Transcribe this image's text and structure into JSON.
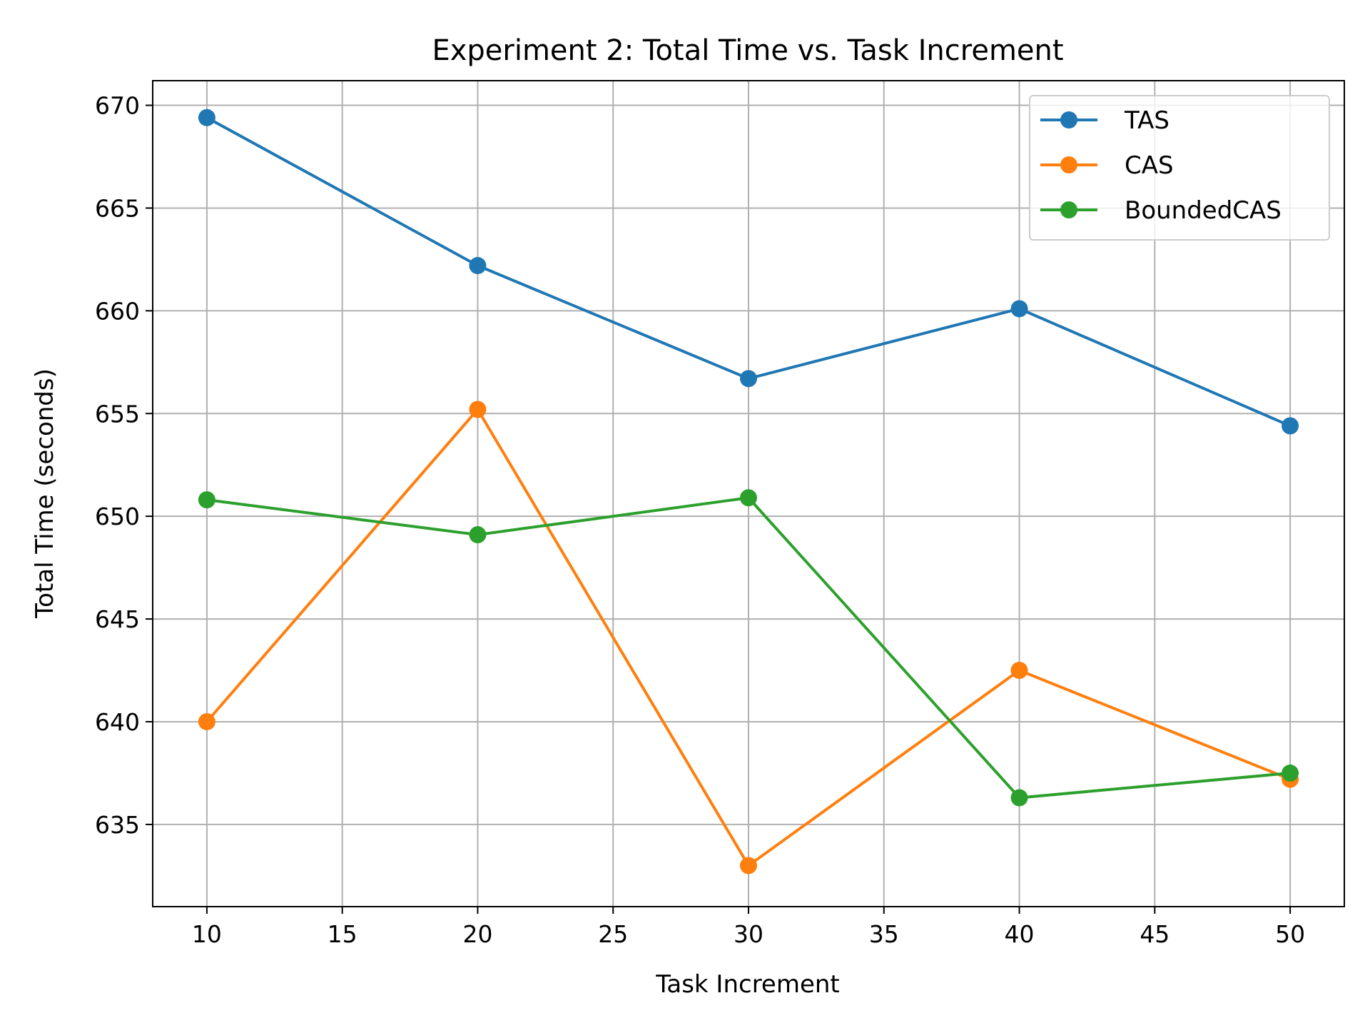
{
  "chart_data": {
    "type": "line",
    "title": "Experiment 2: Total Time vs. Task Increment",
    "xlabel": "Task Increment",
    "ylabel": "Total Time (seconds)",
    "x": [
      10,
      20,
      30,
      40,
      50
    ],
    "xlim": [
      8,
      52
    ],
    "ylim": [
      631,
      671.2
    ],
    "xticks": [
      10,
      15,
      20,
      25,
      30,
      35,
      40,
      45,
      50
    ],
    "yticks": [
      635,
      640,
      645,
      650,
      655,
      660,
      665,
      670
    ],
    "grid": true,
    "legend_position": "upper right",
    "series": [
      {
        "name": "TAS",
        "color": "#1f77b4",
        "values": [
          669.4,
          662.2,
          656.7,
          660.1,
          654.4
        ]
      },
      {
        "name": "CAS",
        "color": "#ff7f0e",
        "values": [
          640.0,
          655.2,
          633.0,
          642.5,
          637.2
        ]
      },
      {
        "name": "BoundedCAS",
        "color": "#2ca02c",
        "values": [
          650.8,
          649.1,
          650.9,
          636.3,
          637.5
        ]
      }
    ]
  }
}
